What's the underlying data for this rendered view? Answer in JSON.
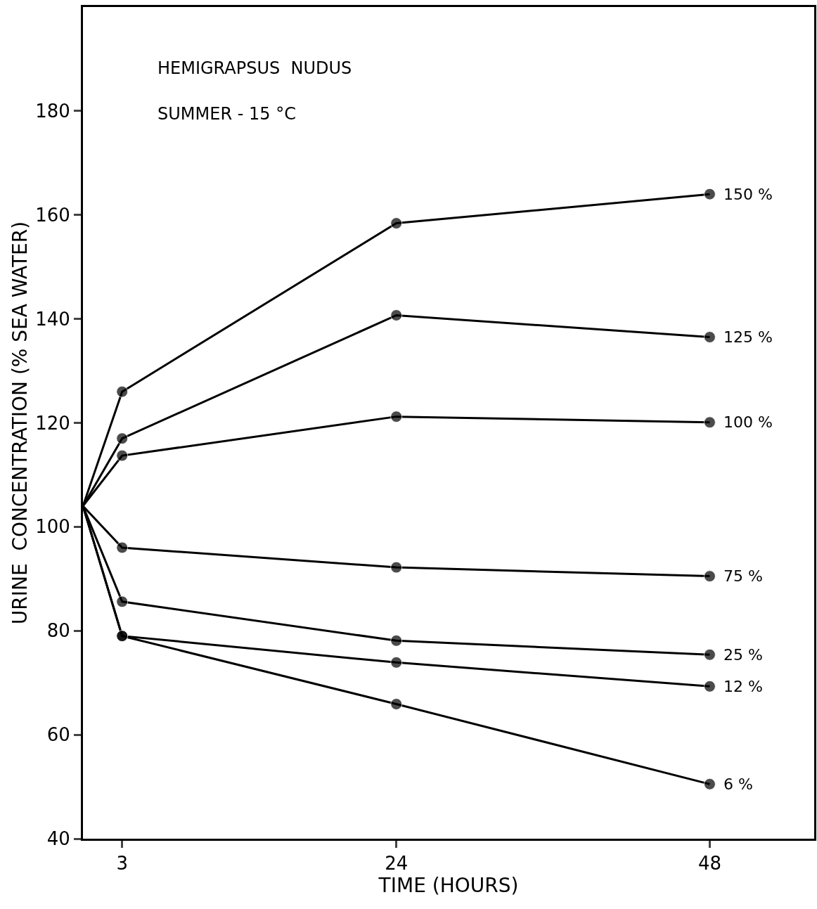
{
  "chart_data": {
    "type": "line",
    "title": "HEMIGRAPSUS  NUDUS",
    "subtitle": "SUMMER - 15 °C",
    "xlabel": "TIME (HOURS)",
    "ylabel": "URINE  CONCENTRATION (% SEA WATER)",
    "x": [
      0,
      3,
      24,
      48
    ],
    "xlim": [
      0,
      56
    ],
    "xticks": [
      3,
      24,
      48
    ],
    "ylim": [
      40,
      200
    ],
    "yticks": [
      40,
      60,
      80,
      100,
      120,
      140,
      160,
      180
    ],
    "grid": false,
    "legend": false,
    "marker": "circle",
    "line_style": "solid",
    "series": [
      {
        "name": "150 %",
        "color": "#000000",
        "values": [
          104,
          126,
          158.4,
          164
        ]
      },
      {
        "name": "125 %",
        "color": "#000000",
        "values": [
          104,
          117,
          140.7,
          136.5
        ]
      },
      {
        "name": "100 %",
        "color": "#000000",
        "values": [
          104,
          113.7,
          121.2,
          120.1
        ]
      },
      {
        "name": "75 %",
        "color": "#000000",
        "values": [
          104,
          96,
          92.2,
          90.5
        ]
      },
      {
        "name": "25 %",
        "color": "#000000",
        "values": [
          104,
          85.6,
          78.1,
          75.4
        ]
      },
      {
        "name": "12 %",
        "color": "#000000",
        "values": [
          104,
          79,
          73.9,
          69.3
        ]
      },
      {
        "name": "6 %",
        "color": "#000000",
        "values": [
          104,
          79,
          65.9,
          50.5
        ]
      }
    ]
  }
}
